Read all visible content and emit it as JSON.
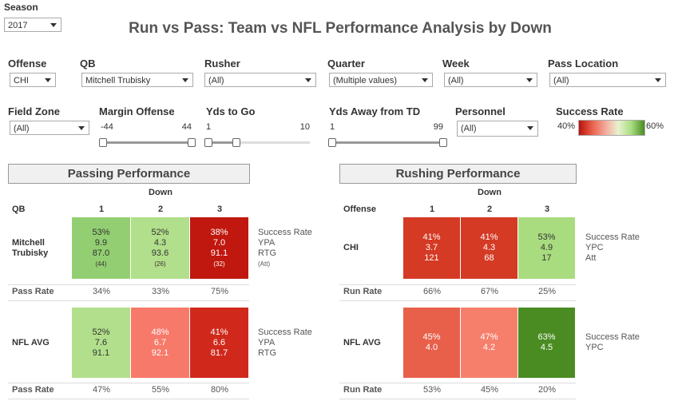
{
  "season": {
    "label": "Season",
    "value": "2017"
  },
  "title": "Run vs Pass:  Team vs NFL Performance Analysis by Down",
  "filters": [
    {
      "label": "Offense",
      "value": "CHI"
    },
    {
      "label": "QB",
      "value": "Mitchell Trubisky"
    },
    {
      "label": "Rusher",
      "value": "(All)"
    },
    {
      "label": "Quarter",
      "value": "(Multiple values)"
    },
    {
      "label": "Week",
      "value": "(All)"
    },
    {
      "label": "Pass Location",
      "value": "(All)"
    },
    {
      "label": "Field Zone",
      "value": "(All)"
    },
    {
      "label": "Personnel",
      "value": "(All)"
    }
  ],
  "sliders": [
    {
      "label": "Margin Offense",
      "min": -44,
      "max": 44
    },
    {
      "label": "Yds to Go",
      "min": 1,
      "max": 10
    },
    {
      "label": "Yds Away from TD",
      "min": 1,
      "max": 99
    }
  ],
  "legend": {
    "label": "Success Rate",
    "min_label": "40%",
    "max_label": "60%"
  },
  "passing": {
    "title": "Passing Performance",
    "down_label": "Down",
    "row_header": "QB",
    "downs": [
      "1",
      "2",
      "3"
    ],
    "sections": [
      {
        "label": "Mitchell Trubisky",
        "cells": [
          {
            "lines": [
              "53%",
              "9.9",
              "87.0",
              "(44)"
            ],
            "color": "#93cf72"
          },
          {
            "lines": [
              "52%",
              "4.3",
              "93.6",
              "(26)"
            ],
            "color": "#b2df8b"
          },
          {
            "lines": [
              "38%",
              "7.0",
              "91.1",
              "(32)"
            ],
            "color": "#c0170f"
          }
        ],
        "measures": [
          "Success Rate",
          "YPA",
          "RTG",
          "(Att)"
        ],
        "rate_label": "Pass Rate",
        "rate_values": [
          "34%",
          "33%",
          "75%"
        ]
      },
      {
        "label": "NFL AVG",
        "cells": [
          {
            "lines": [
              "52%",
              "7.6",
              "91.1"
            ],
            "color": "#b2df8b"
          },
          {
            "lines": [
              "48%",
              "6.7",
              "92.1"
            ],
            "color": "#f7796a"
          },
          {
            "lines": [
              "41%",
              "6.6",
              "81.7"
            ],
            "color": "#d0291c"
          }
        ],
        "measures": [
          "Success Rate",
          "YPA",
          "RTG"
        ],
        "rate_label": "Pass Rate",
        "rate_values": [
          "47%",
          "55%",
          "80%"
        ]
      }
    ]
  },
  "rushing": {
    "title": "Rushing Performance",
    "down_label": "Down",
    "row_header": "Offense",
    "downs": [
      "1",
      "2",
      "3"
    ],
    "sections": [
      {
        "label": "CHI",
        "cells": [
          {
            "lines": [
              "41%",
              "3.7",
              "121"
            ],
            "color": "#d43a24"
          },
          {
            "lines": [
              "41%",
              "4.3",
              "68"
            ],
            "color": "#d43a24"
          },
          {
            "lines": [
              "53%",
              "4.9",
              "17"
            ],
            "color": "#a9dc7f"
          }
        ],
        "measures": [
          "Success Rate",
          "YPC",
          "Att"
        ],
        "rate_label": "Run Rate",
        "rate_values": [
          "66%",
          "67%",
          "25%"
        ]
      },
      {
        "label": "NFL AVG",
        "cells": [
          {
            "lines": [
              "45%",
              "4.0"
            ],
            "color": "#e8604a"
          },
          {
            "lines": [
              "47%",
              "4.2"
            ],
            "color": "#f67f6b"
          },
          {
            "lines": [
              "63%",
              "4.5"
            ],
            "color": "#4a8c22"
          }
        ],
        "measures": [
          "Success Rate",
          "YPC"
        ],
        "rate_label": "Run Rate",
        "rate_values": [
          "53%",
          "45%",
          "20%"
        ]
      }
    ]
  }
}
